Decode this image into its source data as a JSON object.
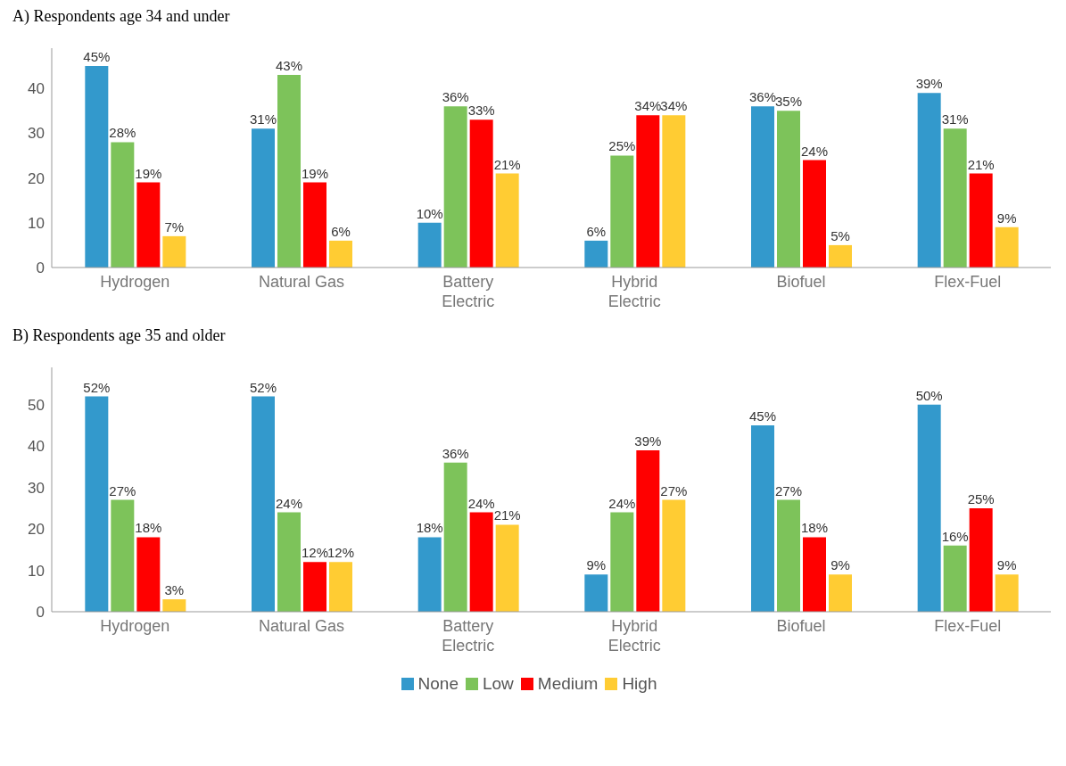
{
  "chart_data": [
    {
      "type": "bar",
      "title": "A) Respondents age 34 and under",
      "categories": [
        "Hydrogen",
        "Natural Gas",
        "Battery Electric",
        "Hybrid Electric",
        "Biofuel",
        "Flex-Fuel"
      ],
      "ylim": [
        0,
        49
      ],
      "yticks": [
        0,
        10,
        20,
        30,
        40
      ],
      "grid": false,
      "legend": false,
      "series": [
        {
          "color": "#3399cc",
          "values": [
            45,
            31,
            10,
            6,
            36,
            39
          ],
          "value_labels": [
            "45%",
            "31%",
            "10%",
            "6%",
            "36%",
            "39%"
          ]
        },
        {
          "color": "#7dc35a",
          "values": [
            28,
            43,
            36,
            25,
            35,
            31
          ],
          "value_labels": [
            "28%",
            "43%",
            "36%",
            "25%",
            "35%",
            "31%"
          ]
        },
        {
          "color": "#ff0000",
          "values": [
            19,
            19,
            33,
            34,
            24,
            21
          ],
          "value_labels": [
            "19%",
            "19%",
            "33%",
            "34%",
            "24%",
            "21%"
          ]
        },
        {
          "color": "#ffcc33",
          "values": [
            7,
            6,
            21,
            34,
            5,
            9
          ],
          "value_labels": [
            "7%",
            "6%",
            "21%",
            "34%",
            "5%",
            "9%"
          ]
        }
      ]
    },
    {
      "type": "bar",
      "title": "B) Respondents age 35 and older",
      "categories": [
        "Hydrogen",
        "Natural Gas",
        "Battery Electric",
        "Hybrid Electric",
        "Biofuel",
        "Flex-Fuel"
      ],
      "ylim": [
        0,
        59
      ],
      "yticks": [
        0,
        10,
        20,
        30,
        40,
        50
      ],
      "grid": false,
      "legend": "bottom",
      "series": [
        {
          "name": "None",
          "color": "#3399cc",
          "values": [
            52,
            52,
            18,
            9,
            45,
            50
          ],
          "value_labels": [
            "52%",
            "52%",
            "18%",
            "9%",
            "45%",
            "50%"
          ]
        },
        {
          "name": "Low",
          "color": "#7dc35a",
          "values": [
            27,
            24,
            36,
            24,
            27,
            16
          ],
          "value_labels": [
            "27%",
            "24%",
            "36%",
            "24%",
            "27%",
            "16%"
          ]
        },
        {
          "name": "Medium",
          "color": "#ff0000",
          "values": [
            18,
            12,
            24,
            39,
            18,
            25
          ],
          "value_labels": [
            "18%",
            "12%",
            "24%",
            "39%",
            "18%",
            "25%"
          ]
        },
        {
          "name": "High",
          "color": "#ffcc33",
          "values": [
            3,
            12,
            21,
            27,
            9,
            9
          ],
          "value_labels": [
            "3%",
            "12%",
            "21%",
            "27%",
            "9%",
            "9%"
          ]
        }
      ]
    }
  ]
}
